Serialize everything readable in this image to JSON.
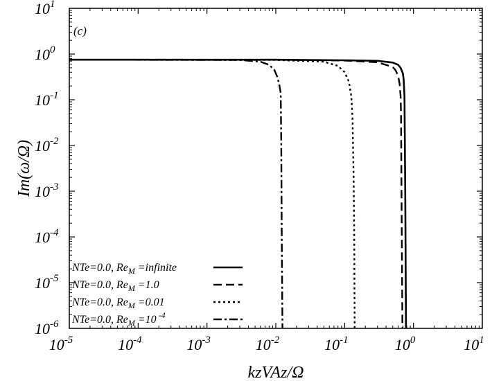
{
  "chart_data": {
    "type": "line",
    "panel_label": "(c)",
    "xlabel": "kzVAz/Ω",
    "ylabel": "Im(ω/Ω)",
    "xscale": "log",
    "yscale": "log",
    "xlim": [
      1e-05,
      10
    ],
    "ylim": [
      1e-06,
      10
    ],
    "grid": false,
    "legend_position": "bottom-left",
    "x_ticks": [
      {
        "value": 1e-05,
        "base": "10",
        "exp": "-5"
      },
      {
        "value": 0.0001,
        "base": "10",
        "exp": "-4"
      },
      {
        "value": 0.001,
        "base": "10",
        "exp": "-3"
      },
      {
        "value": 0.01,
        "base": "10",
        "exp": "-2"
      },
      {
        "value": 0.1,
        "base": "10",
        "exp": "-1"
      },
      {
        "value": 1,
        "base": "10",
        "exp": "0"
      },
      {
        "value": 10,
        "base": "10",
        "exp": "1"
      }
    ],
    "y_ticks": [
      {
        "value": 1e-06,
        "base": "10",
        "exp": "-6"
      },
      {
        "value": 1e-05,
        "base": "10",
        "exp": "-5"
      },
      {
        "value": 0.0001,
        "base": "10",
        "exp": "-4"
      },
      {
        "value": 0.001,
        "base": "10",
        "exp": "-3"
      },
      {
        "value": 0.01,
        "base": "10",
        "exp": "-2"
      },
      {
        "value": 0.1,
        "base": "10",
        "exp": "-1"
      },
      {
        "value": 1,
        "base": "10",
        "exp": "0"
      },
      {
        "value": 10,
        "base": "10",
        "exp": "1"
      }
    ],
    "series": [
      {
        "name": "NTe=0.0, ReM =infinite",
        "legend_parts": [
          "NTe=0.0, Re",
          "M",
          " =infinite",
          ""
        ],
        "dash": "",
        "stroke_width": 2.6,
        "x": [
          1e-05,
          0.01,
          0.1,
          0.3,
          0.5,
          0.6,
          0.65,
          0.7,
          0.72,
          0.74,
          0.76,
          0.78
        ],
        "y": [
          0.75,
          0.75,
          0.73,
          0.71,
          0.65,
          0.58,
          0.5,
          0.38,
          0.28,
          0.12,
          0.001,
          1e-06
        ]
      },
      {
        "name": "NTe=0.0, ReM =1.0",
        "legend_parts": [
          "NTe=0.0, Re",
          "M",
          " =1.0",
          ""
        ],
        "dash": "12 6",
        "stroke_width": 2.4,
        "x": [
          1e-05,
          0.01,
          0.1,
          0.3,
          0.5,
          0.55,
          0.6,
          0.63,
          0.65,
          0.66,
          0.67,
          0.69
        ],
        "y": [
          0.75,
          0.75,
          0.72,
          0.66,
          0.52,
          0.44,
          0.33,
          0.22,
          0.12,
          0.05,
          0.001,
          1e-06
        ]
      },
      {
        "name": "NTe=0.0, ReM =0.01",
        "legend_parts": [
          "NTe=0.0, Re",
          "M",
          " =0.01",
          ""
        ],
        "dash": "3 4",
        "stroke_width": 2.4,
        "x": [
          1e-05,
          0.01,
          0.05,
          0.08,
          0.1,
          0.115,
          0.125,
          0.13,
          0.135,
          0.138,
          0.14
        ],
        "y": [
          0.75,
          0.74,
          0.68,
          0.55,
          0.4,
          0.25,
          0.12,
          0.04,
          0.002,
          0.0001,
          1e-06
        ]
      },
      {
        "name": "NTe=0.0, ReM =10 -4",
        "legend_parts": [
          "NTe=0.0, Re",
          "M",
          " =10",
          "-4"
        ],
        "dash": "12 4 3 4",
        "stroke_width": 2.4,
        "x": [
          1e-05,
          0.003,
          0.006,
          0.008,
          0.0095,
          0.0105,
          0.0112,
          0.0118,
          0.012,
          0.0122,
          0.0125
        ],
        "y": [
          0.75,
          0.74,
          0.68,
          0.58,
          0.45,
          0.32,
          0.22,
          0.14,
          0.01,
          0.0001,
          1e-06
        ]
      }
    ]
  }
}
